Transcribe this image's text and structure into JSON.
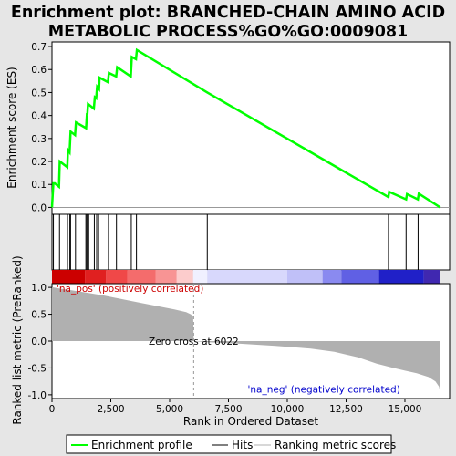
{
  "chart_data": {
    "type": "line",
    "title_lines": [
      "Enrichment plot: BRANCHED-CHAIN AMINO ACID",
      "METABOLIC PROCESS%GO%GO:0009081"
    ],
    "es_panel": {
      "ylabel": "Enrichment score (ES)",
      "ylim": [
        -0.03,
        0.72
      ],
      "yticks": [
        "0.0",
        "0.1",
        "0.2",
        "0.3",
        "0.4",
        "0.5",
        "0.6",
        "0.7"
      ],
      "ytick_values": [
        0.0,
        0.1,
        0.2,
        0.3,
        0.4,
        0.5,
        0.6,
        0.7
      ],
      "line_color": "#00ff00",
      "series": [
        {
          "x": [
            0,
            60,
            120,
            300,
            330,
            650,
            680,
            750,
            790,
            980,
            1020,
            1450,
            1490,
            1500,
            1530,
            1780,
            1820,
            1880,
            1920,
            2000,
            2020,
            2380,
            2420,
            2730,
            2770,
            3350,
            3390,
            3570,
            3610,
            6600,
            14300,
            14330,
            15050,
            15090,
            15550,
            15590,
            16500
          ],
          "y": [
            0.0,
            0.105,
            0.105,
            0.09,
            0.2,
            0.175,
            0.25,
            0.24,
            0.33,
            0.315,
            0.37,
            0.345,
            0.41,
            0.4,
            0.45,
            0.43,
            0.48,
            0.475,
            0.525,
            0.515,
            0.565,
            0.545,
            0.585,
            0.57,
            0.61,
            0.57,
            0.655,
            0.645,
            0.685,
            0.5,
            0.045,
            0.068,
            0.035,
            0.058,
            0.035,
            0.06,
            0.0
          ]
        }
      ]
    },
    "hits": [
      0,
      60,
      320,
      660,
      760,
      790,
      1000,
      1440,
      1480,
      1520,
      1560,
      1800,
      1900,
      1980,
      2400,
      2740,
      3370,
      3590,
      6600,
      14300,
      15050,
      15560
    ],
    "color_bar": {
      "segments": [
        {
          "from": 0,
          "to": 1400,
          "color": "#cc0000"
        },
        {
          "from": 1400,
          "to": 2300,
          "color": "#e02020"
        },
        {
          "from": 2300,
          "to": 3200,
          "color": "#f04848"
        },
        {
          "from": 3200,
          "to": 4400,
          "color": "#f46c6c"
        },
        {
          "from": 4400,
          "to": 5300,
          "color": "#f89494"
        },
        {
          "from": 5300,
          "to": 6000,
          "color": "#fccccc"
        },
        {
          "from": 6000,
          "to": 6600,
          "color": "#f0f0ff"
        },
        {
          "from": 6600,
          "to": 10000,
          "color": "#d8d8fc"
        },
        {
          "from": 10000,
          "to": 11500,
          "color": "#c0c0f8"
        },
        {
          "from": 11500,
          "to": 12300,
          "color": "#8a8af0"
        },
        {
          "from": 12300,
          "to": 13900,
          "color": "#6060e4"
        },
        {
          "from": 13900,
          "to": 15800,
          "color": "#2020c8"
        },
        {
          "from": 15800,
          "to": 16500,
          "color": "#4028b0"
        }
      ]
    },
    "metric_panel": {
      "ylabel": "Ranked list metric (PreRanked)",
      "ylim": [
        -1.07,
        1.07
      ],
      "yticks": [
        "-1.0",
        "-0.5",
        "0.0",
        "0.5",
        "1.0"
      ],
      "ytick_values": [
        -1.0,
        -0.5,
        0.0,
        0.5,
        1.0
      ],
      "fill_color": "#b0b0b0",
      "profile": {
        "x": [
          0,
          50,
          300,
          800,
          1500,
          2200,
          3000,
          3800,
          4500,
          5200,
          5700,
          5900,
          6000,
          6022,
          6600,
          8000,
          9500,
          11000,
          12000,
          13000,
          13800,
          14500,
          15000,
          15500,
          16000,
          16300,
          16450,
          16500
        ],
        "y": [
          1.0,
          1.0,
          0.98,
          0.95,
          0.9,
          0.85,
          0.78,
          0.71,
          0.65,
          0.59,
          0.54,
          0.5,
          0.46,
          0.0,
          -0.02,
          -0.05,
          -0.09,
          -0.14,
          -0.2,
          -0.3,
          -0.42,
          -0.5,
          -0.55,
          -0.6,
          -0.67,
          -0.75,
          -0.85,
          -0.97
        ]
      },
      "zero_cross": 6022,
      "zero_cross_label": "Zero cross at 6022",
      "pos_label": "'na_pos' (positively correlated)",
      "neg_label": "'na_neg' (negatively correlated)"
    },
    "xaxis": {
      "label": "Rank in Ordered Dataset",
      "xlim": [
        0,
        16900
      ],
      "xticks": [
        "0",
        "2,500",
        "5,000",
        "7,500",
        "10,000",
        "12,500",
        "15,000"
      ],
      "xtick_values": [
        0,
        2500,
        5000,
        7500,
        10000,
        12500,
        15000
      ]
    },
    "legend": {
      "placement": "bottom",
      "items": [
        {
          "label": "Enrichment profile",
          "color": "#00ff00",
          "kind": "line"
        },
        {
          "label": "Hits",
          "color": "#000000",
          "kind": "line"
        },
        {
          "label": "Ranking metric scores",
          "color": "#b0b0b0",
          "kind": "line"
        }
      ]
    }
  }
}
